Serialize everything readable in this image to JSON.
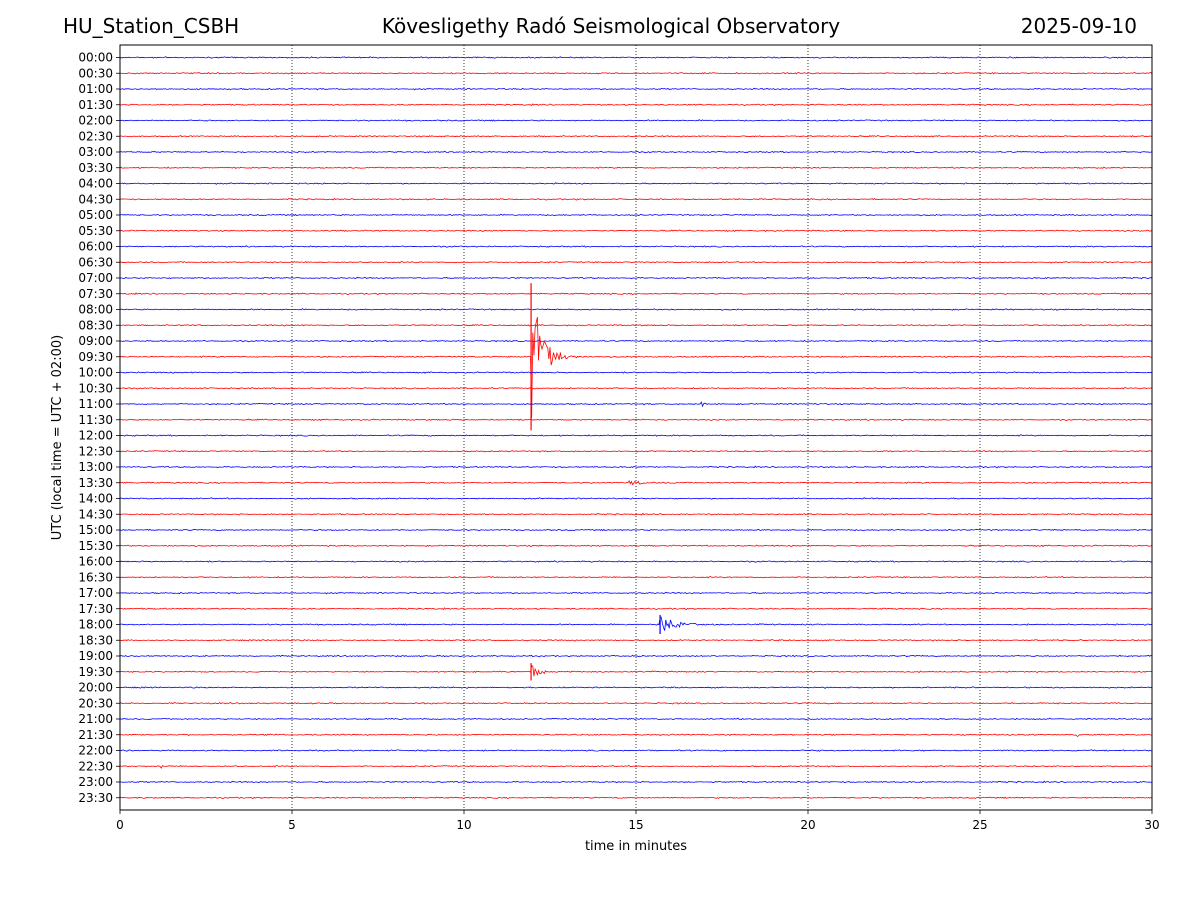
{
  "header": {
    "station": "HU_Station_CSBH",
    "title": "Kövesligethy Radó Seismological Observatory",
    "date": "2025-09-10"
  },
  "chart_data": {
    "type": "line",
    "title": "Kövesligethy Radó Seismological Observatory",
    "xlabel": "time in minutes",
    "ylabel": "UTC (local time = UTC + 02:00)",
    "xlim": [
      0,
      30
    ],
    "x_ticks": [
      "0",
      "5",
      "10",
      "15",
      "20",
      "25",
      "30"
    ],
    "grid": "vertical dotted lines at x ticks",
    "trace_colors": [
      "#0000ff",
      "#ff0000"
    ],
    "rows": [
      "00:00",
      "00:30",
      "01:00",
      "01:30",
      "02:00",
      "02:30",
      "03:00",
      "03:30",
      "04:00",
      "04:30",
      "05:00",
      "05:30",
      "06:00",
      "06:30",
      "07:00",
      "07:30",
      "08:00",
      "08:30",
      "09:00",
      "09:30",
      "10:00",
      "10:30",
      "11:00",
      "11:30",
      "12:00",
      "12:30",
      "13:00",
      "13:30",
      "14:00",
      "14:30",
      "15:00",
      "15:30",
      "16:00",
      "16:30",
      "17:00",
      "17:30",
      "18:00",
      "18:30",
      "19:00",
      "19:30",
      "20:00",
      "20:30",
      "21:00",
      "21:30",
      "22:00",
      "22:30",
      "23:00",
      "23:30"
    ],
    "events": [
      {
        "row": "09:30",
        "start_min": 11.95,
        "duration_min": 1.4,
        "amplitude": 8.5,
        "color": "#ff0000"
      },
      {
        "row": "13:30",
        "start_min": 14.8,
        "duration_min": 1.5,
        "amplitude": 0.4,
        "color": "#ff0000"
      },
      {
        "row": "18:00",
        "start_min": 15.7,
        "duration_min": 2.1,
        "amplitude": 1.1,
        "color": "#0000ff"
      },
      {
        "row": "19:30",
        "start_min": 11.95,
        "duration_min": 1.0,
        "amplitude": 1.0,
        "color": "#ff0000"
      },
      {
        "row": "11:00",
        "start_min": 16.9,
        "duration_min": 0.6,
        "amplitude": 0.3,
        "color": "#0000ff"
      },
      {
        "row": "21:30",
        "start_min": 27.8,
        "duration_min": 0.9,
        "amplitude": 0.3,
        "color": "#ff0000"
      },
      {
        "row": "22:30",
        "start_min": 1.2,
        "duration_min": 0.2,
        "amplitude": 0.3,
        "color": "#ff0000"
      }
    ]
  }
}
